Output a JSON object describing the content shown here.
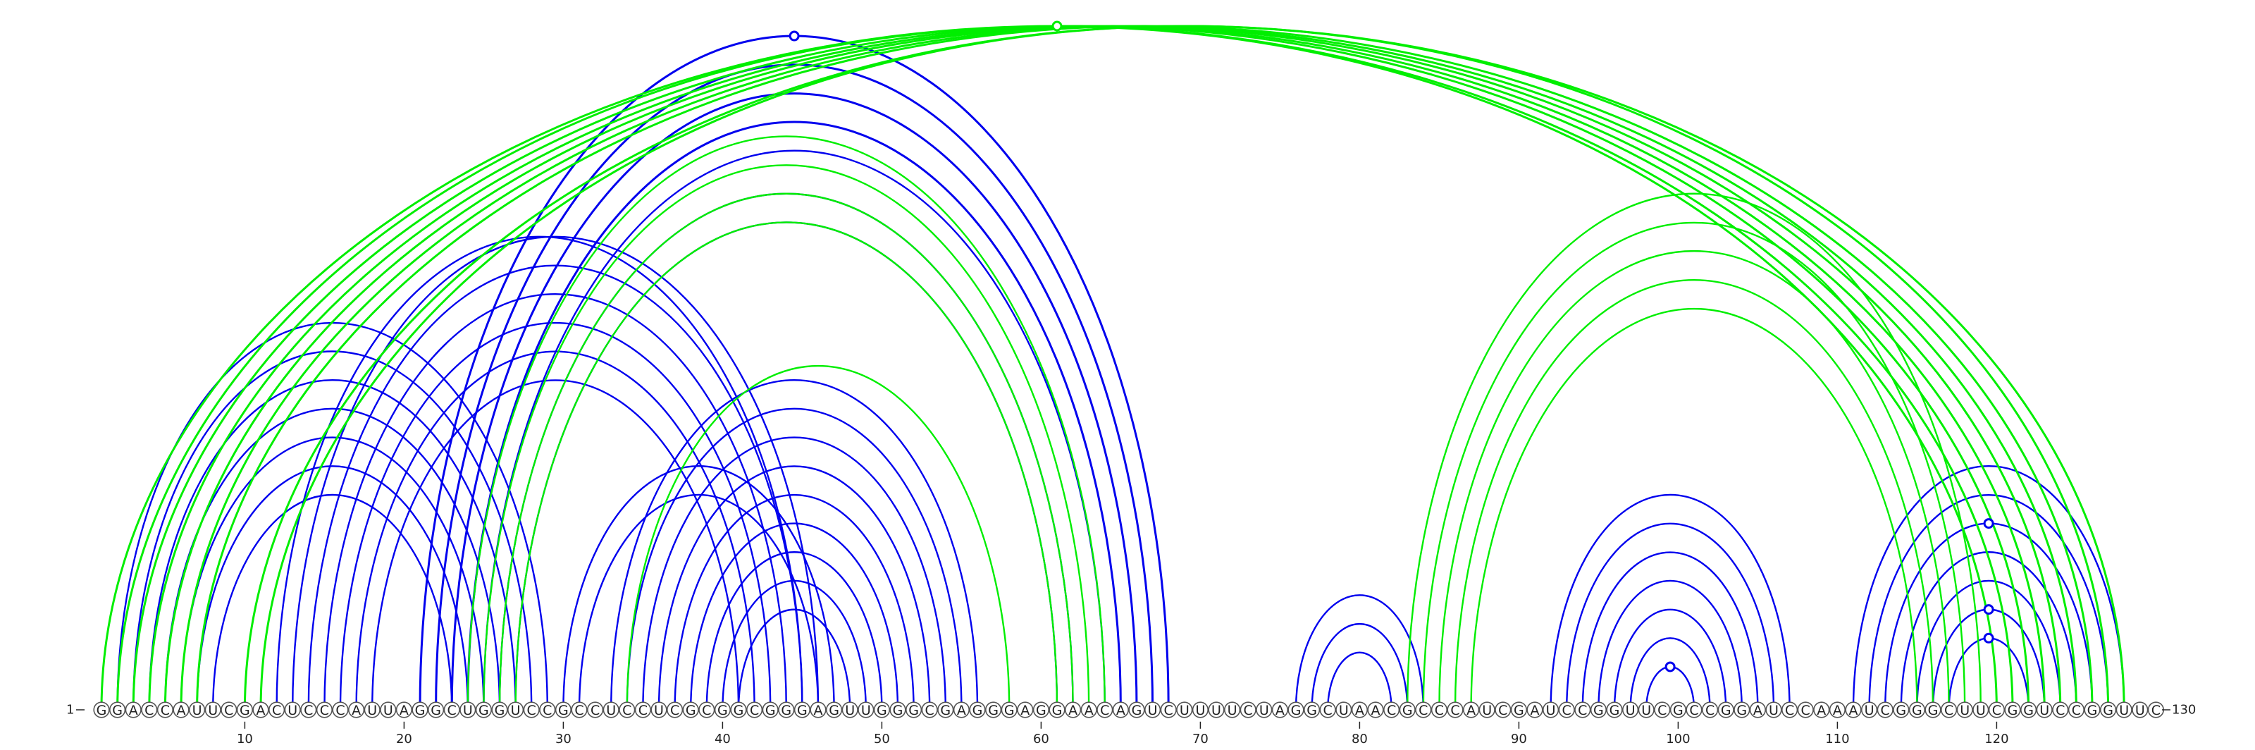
{
  "sequence": "GGACCAUUCGACUCCCAUUAGGCUGGUCCGCCUCCUCGCGGCGGGAGUUGGGCGAGGGAGGAACAGUCUUUUCUAGGCUAACGCCCAUCGAUCCGGUUCGCCGGAUCCAAAUCGGGCUUCGGUCCGGUUC",
  "start_label": "1",
  "end_label": "130",
  "tick_labels": [
    "10",
    "20",
    "30",
    "40",
    "50",
    "60",
    "70",
    "80",
    "90",
    "100",
    "110",
    "120"
  ],
  "colors": {
    "structure_a": "#0000ee",
    "structure_b": "#00ee00"
  },
  "structure_a_pairs": [
    [
      2,
      29
    ],
    [
      3,
      28
    ],
    [
      4,
      27
    ],
    [
      5,
      26
    ],
    [
      6,
      25
    ],
    [
      7,
      24
    ],
    [
      8,
      23
    ],
    [
      12,
      45
    ],
    [
      13,
      46
    ],
    [
      14,
      45
    ],
    [
      15,
      44
    ],
    [
      16,
      43
    ],
    [
      17,
      42
    ],
    [
      18,
      41
    ],
    [
      21,
      68
    ],
    [
      22,
      67
    ],
    [
      23,
      66
    ],
    [
      24,
      65
    ],
    [
      25,
      64
    ],
    [
      26,
      62
    ],
    [
      27,
      61
    ],
    [
      30,
      47
    ],
    [
      31,
      46
    ],
    [
      33,
      56
    ],
    [
      34,
      55
    ],
    [
      35,
      54
    ],
    [
      36,
      53
    ],
    [
      37,
      52
    ],
    [
      38,
      51
    ],
    [
      39,
      50
    ],
    [
      40,
      49
    ],
    [
      41,
      48
    ],
    [
      76,
      84
    ],
    [
      77,
      83
    ],
    [
      78,
      82
    ],
    [
      92,
      107
    ],
    [
      93,
      106
    ],
    [
      94,
      105
    ],
    [
      95,
      104
    ],
    [
      96,
      103
    ],
    [
      97,
      102
    ],
    [
      98,
      101
    ],
    [
      111,
      128
    ],
    [
      112,
      127
    ],
    [
      113,
      126
    ],
    [
      114,
      125
    ],
    [
      115,
      124
    ],
    [
      116,
      123
    ],
    [
      117,
      122
    ]
  ],
  "structure_b_pairs": [
    [
      1,
      121
    ],
    [
      2,
      120
    ],
    [
      3,
      122
    ],
    [
      4,
      123
    ],
    [
      5,
      124
    ],
    [
      6,
      125
    ],
    [
      7,
      126
    ],
    [
      10,
      128
    ],
    [
      11,
      127
    ],
    [
      24,
      64
    ],
    [
      25,
      63
    ],
    [
      26,
      62
    ],
    [
      27,
      61
    ],
    [
      34,
      58
    ],
    [
      83,
      119
    ],
    [
      84,
      118
    ],
    [
      85,
      117
    ],
    [
      86,
      116
    ],
    [
      87,
      115
    ]
  ]
}
